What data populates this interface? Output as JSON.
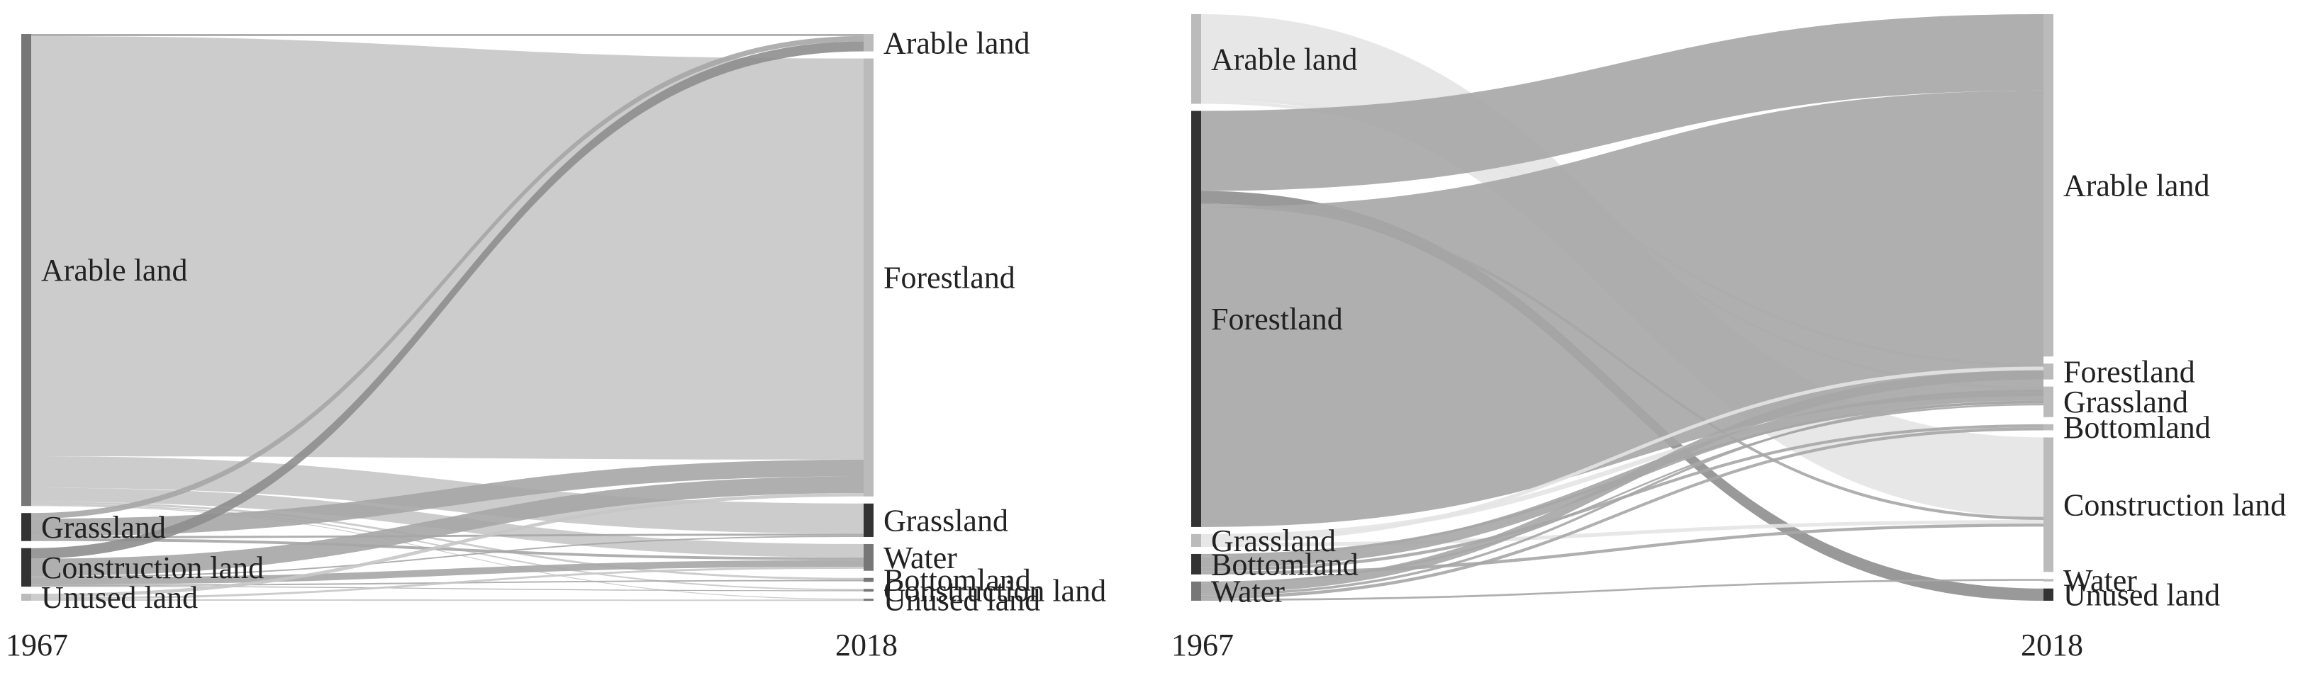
{
  "colors": {
    "background": "#ffffff",
    "label": "#222222",
    "node_dark": "#333333",
    "node_mid": "#777777",
    "node_light": "#bbbbbb",
    "flow_light": "#e4e4e4",
    "flow_mid": "#c6c6c6",
    "flow_dark": "#a6a6a6",
    "flow_darker": "#8e8e8e"
  },
  "diagrams": [
    {
      "left_year": "1967",
      "right_year": "2018",
      "left_nodes": [
        {
          "id": "arable",
          "label": "Arable land",
          "value": 67.4,
          "shade": "node_mid"
        },
        {
          "id": "grass",
          "label": "Grassland",
          "value": 4.0,
          "shade": "node_dark"
        },
        {
          "id": "constr",
          "label": "Construction land",
          "value": 5.5,
          "shade": "node_dark"
        },
        {
          "id": "unused",
          "label": "Unused land",
          "value": 1.0,
          "shade": "node_light"
        }
      ],
      "right_nodes": [
        {
          "id": "arable",
          "label": "Arable land",
          "value": 2.6,
          "shade": "node_light"
        },
        {
          "id": "forest",
          "label": "Forestland",
          "value": 65.5,
          "shade": "node_light"
        },
        {
          "id": "grass",
          "label": "Grassland",
          "value": 5.0,
          "shade": "node_dark"
        },
        {
          "id": "water",
          "label": "Water",
          "value": 4.0,
          "shade": "node_mid"
        },
        {
          "id": "bottom",
          "label": "Bottomland",
          "value": 0.6,
          "shade": "node_mid"
        },
        {
          "id": "constr",
          "label": "Construction land",
          "value": 0.4,
          "shade": "node_mid"
        },
        {
          "id": "unused",
          "label": "Unused land",
          "value": 0.3,
          "shade": "node_mid"
        }
      ],
      "flows": [
        {
          "source": "arable",
          "target": "arable",
          "value": 0.3,
          "shade": "flow_dark"
        },
        {
          "source": "arable",
          "target": "forest",
          "value": 60.0,
          "shade": "flow_mid"
        },
        {
          "source": "arable",
          "target": "grass",
          "value": 4.5,
          "shade": "flow_mid"
        },
        {
          "source": "arable",
          "target": "water",
          "value": 2.0,
          "shade": "flow_mid"
        },
        {
          "source": "arable",
          "target": "bottom",
          "value": 0.3,
          "shade": "flow_mid"
        },
        {
          "source": "arable",
          "target": "constr",
          "value": 0.2,
          "shade": "flow_mid"
        },
        {
          "source": "arable",
          "target": "unused",
          "value": 0.1,
          "shade": "flow_mid"
        },
        {
          "source": "grass",
          "target": "arable",
          "value": 0.8,
          "shade": "flow_dark"
        },
        {
          "source": "grass",
          "target": "forest",
          "value": 2.5,
          "shade": "flow_dark"
        },
        {
          "source": "grass",
          "target": "grass",
          "value": 0.3,
          "shade": "flow_dark"
        },
        {
          "source": "grass",
          "target": "water",
          "value": 0.4,
          "shade": "flow_dark"
        },
        {
          "source": "constr",
          "target": "arable",
          "value": 1.5,
          "shade": "flow_darker"
        },
        {
          "source": "constr",
          "target": "forest",
          "value": 2.5,
          "shade": "flow_dark"
        },
        {
          "source": "constr",
          "target": "grass",
          "value": 0.2,
          "shade": "flow_dark"
        },
        {
          "source": "constr",
          "target": "water",
          "value": 1.0,
          "shade": "flow_dark"
        },
        {
          "source": "constr",
          "target": "bottom",
          "value": 0.2,
          "shade": "flow_dark"
        },
        {
          "source": "constr",
          "target": "constr",
          "value": 0.1,
          "shade": "flow_dark"
        },
        {
          "source": "unused",
          "target": "forest",
          "value": 0.5,
          "shade": "flow_mid"
        },
        {
          "source": "unused",
          "target": "water",
          "value": 0.3,
          "shade": "flow_mid"
        },
        {
          "source": "unused",
          "target": "unused",
          "value": 0.2,
          "shade": "flow_mid"
        }
      ]
    },
    {
      "left_year": "1967",
      "right_year": "2018",
      "left_nodes": [
        {
          "id": "arable",
          "label": "Arable land",
          "value": 14.0,
          "shade": "node_light"
        },
        {
          "id": "forest",
          "label": "Forestland",
          "value": 65.0,
          "shade": "node_dark"
        },
        {
          "id": "grass",
          "label": "Grassland",
          "value": 2.0,
          "shade": "node_light"
        },
        {
          "id": "bottom",
          "label": "Bottomland",
          "value": 3.2,
          "shade": "node_dark"
        },
        {
          "id": "water",
          "label": "Water",
          "value": 3.0,
          "shade": "node_mid"
        }
      ],
      "right_nodes": [
        {
          "id": "arable",
          "label": "Arable land",
          "value": 56.0,
          "shade": "node_light"
        },
        {
          "id": "forest",
          "label": "Forestland",
          "value": 2.6,
          "shade": "node_light"
        },
        {
          "id": "grass",
          "label": "Grassland",
          "value": 5.0,
          "shade": "node_light"
        },
        {
          "id": "bottom",
          "label": "Bottomland",
          "value": 1.0,
          "shade": "node_light"
        },
        {
          "id": "constr",
          "label": "Construction land",
          "value": 22.0,
          "shade": "node_light"
        },
        {
          "id": "water",
          "label": "Water",
          "value": 0.4,
          "shade": "node_light"
        },
        {
          "id": "unused",
          "label": "Unused land",
          "value": 2.0,
          "shade": "node_dark"
        }
      ],
      "flows": [
        {
          "source": "arable",
          "target": "constr",
          "value": 13.0,
          "shade": "flow_light"
        },
        {
          "source": "arable",
          "target": "forest",
          "value": 0.5,
          "shade": "flow_light"
        },
        {
          "source": "arable",
          "target": "grass",
          "value": 0.5,
          "shade": "flow_light"
        },
        {
          "source": "forest",
          "target": "arable",
          "value": 12.5,
          "shade": "flow_dark"
        },
        {
          "source": "forest",
          "target": "unused",
          "value": 2.0,
          "shade": "flow_darker"
        },
        {
          "source": "forest",
          "target": "constr",
          "value": 0.5,
          "shade": "flow_dark"
        },
        {
          "source": "forest",
          "target": "arable",
          "value": 50.0,
          "shade": "flow_dark"
        },
        {
          "source": "grass",
          "target": "arable",
          "value": 0.8,
          "shade": "flow_light"
        },
        {
          "source": "grass",
          "target": "forest",
          "value": 0.6,
          "shade": "flow_light"
        },
        {
          "source": "grass",
          "target": "constr",
          "value": 0.6,
          "shade": "flow_light"
        },
        {
          "source": "bottom",
          "target": "arable",
          "value": 0.4,
          "shade": "flow_dark"
        },
        {
          "source": "bottom",
          "target": "grass",
          "value": 1.8,
          "shade": "flow_dark"
        },
        {
          "source": "bottom",
          "target": "bottom",
          "value": 0.5,
          "shade": "flow_dark"
        },
        {
          "source": "bottom",
          "target": "constr",
          "value": 0.5,
          "shade": "flow_dark"
        },
        {
          "source": "water",
          "target": "arable",
          "value": 0.3,
          "shade": "flow_dark"
        },
        {
          "source": "water",
          "target": "forest",
          "value": 1.5,
          "shade": "flow_dark"
        },
        {
          "source": "water",
          "target": "grass",
          "value": 0.4,
          "shade": "flow_dark"
        },
        {
          "source": "water",
          "target": "bottom",
          "value": 0.5,
          "shade": "flow_dark"
        },
        {
          "source": "water",
          "target": "water",
          "value": 0.3,
          "shade": "flow_dark"
        }
      ]
    }
  ]
}
